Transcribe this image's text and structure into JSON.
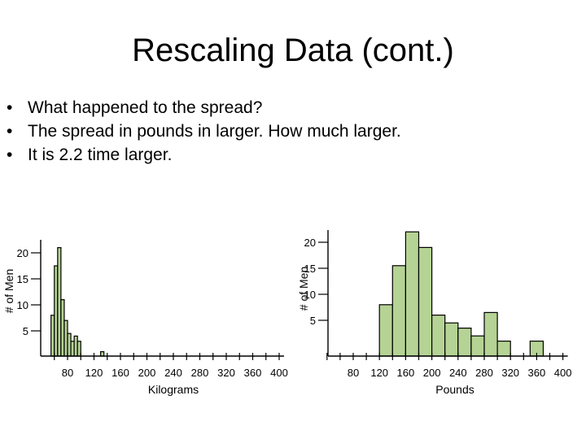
{
  "slide": {
    "title": "Rescaling Data (cont.)",
    "bullets": [
      "What happened to the spread?",
      "The spread in pounds in larger. How much larger.",
      "It is 2.2 time larger."
    ]
  },
  "colors": {
    "bar_fill": "#b5d394",
    "bar_stroke": "#000000"
  },
  "chart_data": [
    {
      "type": "bar",
      "subtype": "histogram",
      "xlabel": "Kilograms",
      "ylabel": "# of Men",
      "x_ticks": [
        80,
        120,
        160,
        200,
        240,
        280,
        320,
        360,
        400
      ],
      "y_ticks": [
        5,
        10,
        15,
        20
      ],
      "xlim": [
        55,
        400
      ],
      "ylim": [
        0,
        21
      ],
      "bin_width": 5,
      "bins": [
        {
          "start": 55,
          "end": 60,
          "count": 8
        },
        {
          "start": 60,
          "end": 65,
          "count": 17.5
        },
        {
          "start": 65,
          "end": 70,
          "count": 21
        },
        {
          "start": 70,
          "end": 75,
          "count": 11
        },
        {
          "start": 75,
          "end": 80,
          "count": 7
        },
        {
          "start": 80,
          "end": 85,
          "count": 4.5
        },
        {
          "start": 85,
          "end": 90,
          "count": 3
        },
        {
          "start": 90,
          "end": 95,
          "count": 4
        },
        {
          "start": 95,
          "end": 100,
          "count": 3
        },
        {
          "start": 130,
          "end": 135,
          "count": 1
        }
      ]
    },
    {
      "type": "bar",
      "subtype": "histogram",
      "xlabel": "Pounds",
      "ylabel": "# of Men",
      "x_ticks": [
        80,
        120,
        160,
        200,
        240,
        280,
        320,
        360,
        400
      ],
      "y_ticks": [
        5,
        10,
        15,
        20
      ],
      "xlim": [
        40,
        400
      ],
      "ylim": [
        0,
        21
      ],
      "bin_width": 20,
      "bins": [
        {
          "start": 120,
          "end": 140,
          "count": 8
        },
        {
          "start": 140,
          "end": 160,
          "count": 15.5
        },
        {
          "start": 160,
          "end": 180,
          "count": 22
        },
        {
          "start": 180,
          "end": 200,
          "count": 19
        },
        {
          "start": 200,
          "end": 220,
          "count": 6
        },
        {
          "start": 220,
          "end": 240,
          "count": 4.5
        },
        {
          "start": 240,
          "end": 260,
          "count": 3.5
        },
        {
          "start": 260,
          "end": 280,
          "count": 2
        },
        {
          "start": 280,
          "end": 300,
          "count": 6.5
        },
        {
          "start": 300,
          "end": 320,
          "count": 1
        },
        {
          "start": 350,
          "end": 370,
          "count": 1
        }
      ]
    }
  ]
}
